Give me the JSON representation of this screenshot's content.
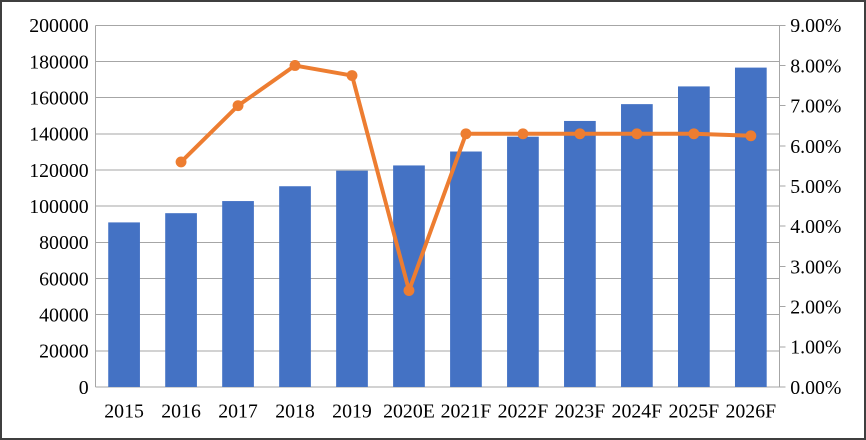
{
  "chart_data": {
    "type": "bar",
    "subtype": "bar-line-combo",
    "categories": [
      "2015",
      "2016",
      "2017",
      "2018",
      "2019",
      "2020E",
      "2021F",
      "2022F",
      "2023F",
      "2024F",
      "2025F",
      "2026F"
    ],
    "series": [
      {
        "name": "value-bars",
        "type": "bar",
        "axis": "left",
        "color": "#4472C4",
        "values": [
          91000,
          96100,
          102800,
          111000,
          119600,
          122500,
          130200,
          138400,
          147100,
          156400,
          166200,
          176600
        ]
      },
      {
        "name": "growth-rate-line",
        "type": "line",
        "axis": "right",
        "color": "#ED7D31",
        "values": [
          null,
          5.6,
          7.0,
          8.0,
          7.75,
          2.4,
          6.3,
          6.3,
          6.3,
          6.3,
          6.3,
          6.25
        ]
      }
    ],
    "left_axis": {
      "min": 0,
      "max": 200000,
      "step": 20000,
      "tick_labels": [
        "0",
        "20000",
        "40000",
        "60000",
        "80000",
        "100000",
        "120000",
        "140000",
        "160000",
        "180000",
        "200000"
      ]
    },
    "right_axis": {
      "min": 0,
      "max": 9,
      "step": 1,
      "tick_labels": [
        "0.00%",
        "1.00%",
        "2.00%",
        "3.00%",
        "4.00%",
        "5.00%",
        "6.00%",
        "7.00%",
        "8.00%",
        "9.00%"
      ]
    },
    "grid": "horizontal",
    "legend": "none"
  },
  "colors": {
    "bar": "#4472C4",
    "line": "#ED7D31",
    "grid": "#A6A6A6",
    "axis_line": "#A6A6A6",
    "text": "#000000",
    "frame_border": "#3F3F3F",
    "background": "#FFFFFF"
  }
}
